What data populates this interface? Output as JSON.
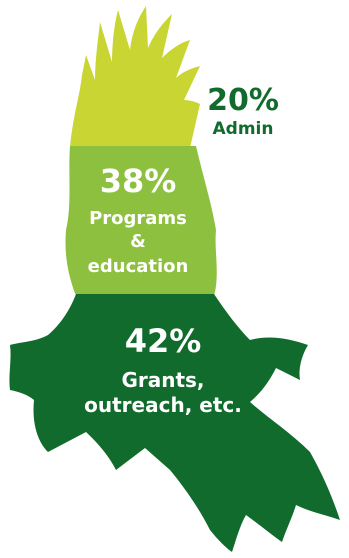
{
  "chart_data": {
    "type": "pie",
    "title": "",
    "slices": [
      {
        "label_lines": [
          "Admin"
        ],
        "value": 20,
        "value_text": "20%",
        "color": "#c8d532"
      },
      {
        "label_lines": [
          "Programs",
          "&",
          "education"
        ],
        "value": 38,
        "value_text": "38%",
        "color": "#8dc03f"
      },
      {
        "label_lines": [
          "Grants,",
          "outreach, etc."
        ],
        "value": 42,
        "value_text": "42%",
        "color": "#116b2c"
      }
    ],
    "label_color_outside": "#116b2c",
    "label_color_inside": "#ffffff"
  }
}
